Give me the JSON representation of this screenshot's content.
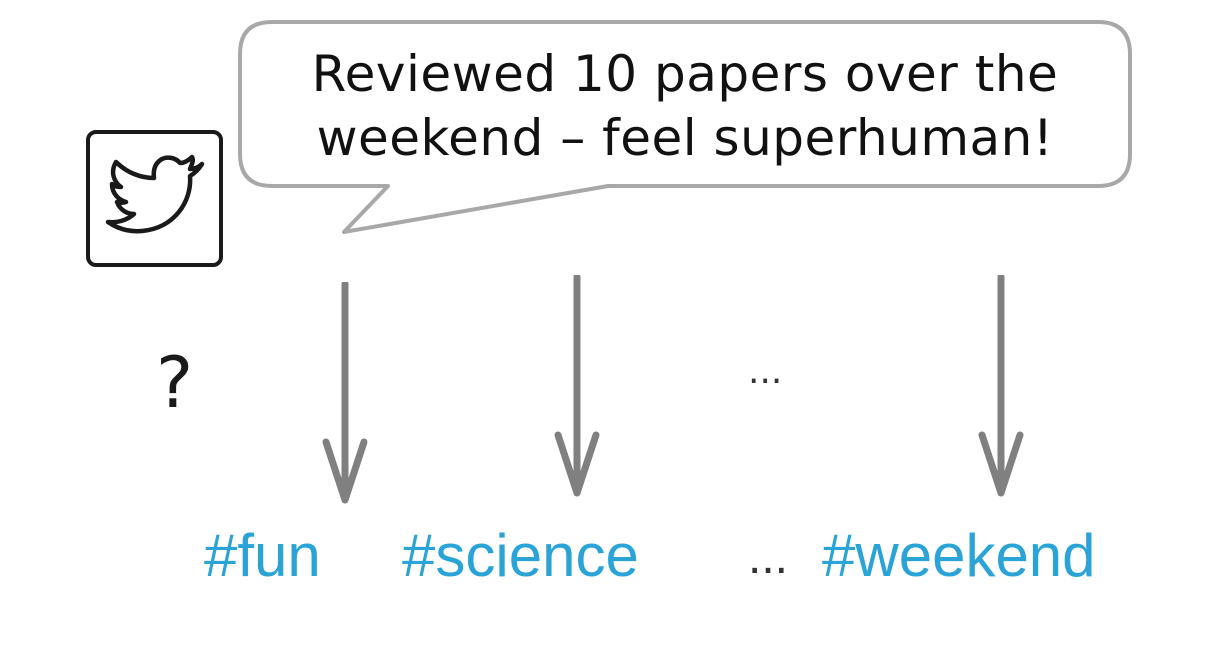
{
  "bubble": {
    "line1": "Reviewed 10 papers over the",
    "line2": "weekend – feel superhuman!"
  },
  "icon": "twitter-bird-icon",
  "question": "?",
  "arrow_ellipsis": "...",
  "hashtags": {
    "tag1": "#fun",
    "tag2": "#science",
    "ellipsis": "...",
    "tag3": "#weekend"
  },
  "colors": {
    "hashtag": "#2aa4d6",
    "arrow": "#808080",
    "bubble_border": "#a8a8a8"
  }
}
